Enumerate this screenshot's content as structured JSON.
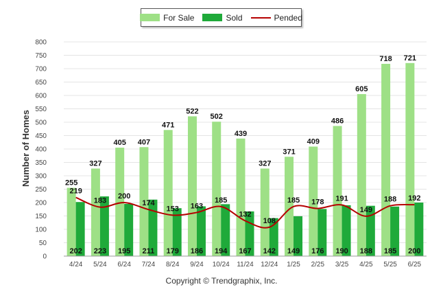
{
  "chart_data": {
    "type": "bar",
    "categories": [
      "4/24",
      "5/24",
      "6/24",
      "7/24",
      "8/24",
      "9/24",
      "10/24",
      "11/24",
      "12/24",
      "1/25",
      "2/25",
      "3/25",
      "4/25",
      "5/25",
      "6/25"
    ],
    "series": [
      {
        "name": "For Sale",
        "kind": "bar",
        "color": "#9ee086",
        "values": [
          255,
          327,
          405,
          407,
          471,
          522,
          502,
          439,
          327,
          371,
          409,
          486,
          605,
          718,
          721
        ]
      },
      {
        "name": "Sold",
        "kind": "bar",
        "color": "#1faa3a",
        "values": [
          202,
          223,
          195,
          211,
          179,
          186,
          194,
          167,
          142,
          149,
          176,
          190,
          188,
          185,
          200
        ]
      },
      {
        "name": "Pended",
        "kind": "line",
        "color": "#b50000",
        "values": [
          219,
          183,
          200,
          174,
          153,
          163,
          185,
          132,
          108,
          185,
          178,
          191,
          149,
          188,
          192
        ]
      }
    ],
    "ylabel": "Number of Homes",
    "xlabel": "",
    "ylim": [
      0,
      800
    ],
    "yticks": [
      0,
      50,
      100,
      150,
      200,
      250,
      300,
      350,
      400,
      450,
      500,
      550,
      600,
      650,
      700,
      750,
      800
    ],
    "grid": true,
    "legend_position": "top-center"
  },
  "footer": {
    "copyright": "Copyright © Trendgraphix, Inc."
  }
}
